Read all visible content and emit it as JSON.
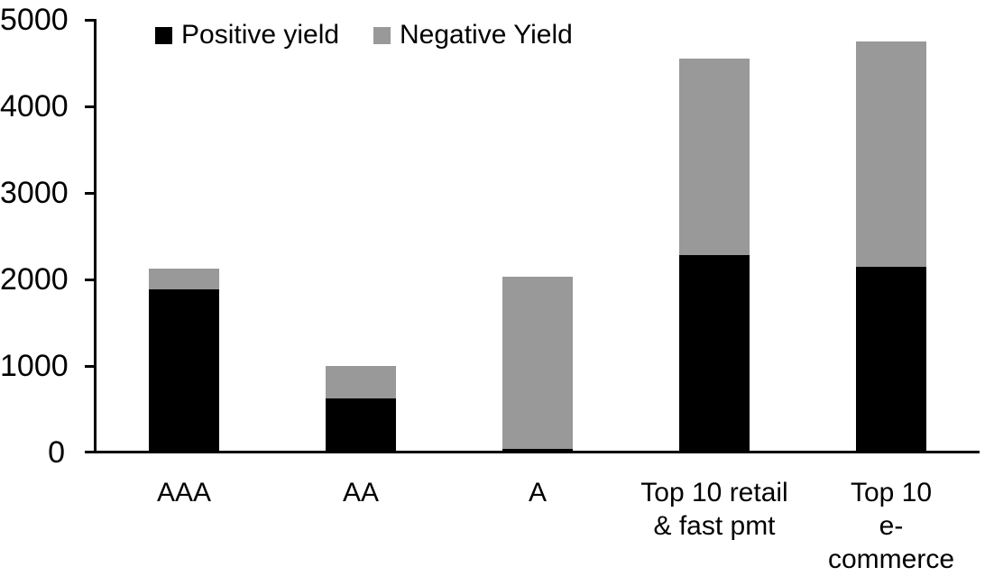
{
  "chart_data": {
    "type": "bar",
    "stacked": true,
    "title": "",
    "xlabel": "",
    "ylabel": "",
    "categories": [
      "AAA",
      "AA",
      "A",
      "Top 10 retail\n& fast pmt",
      "Top 10\ne-commerce"
    ],
    "series": [
      {
        "name": "Positive yield",
        "color": "#000000",
        "values": [
          1890,
          620,
          45,
          2280,
          2150
        ]
      },
      {
        "name": "Negative Yield",
        "color": "#999999",
        "values": [
          240,
          380,
          1990,
          2270,
          2600
        ]
      }
    ],
    "totals": [
      2130,
      1000,
      2035,
      4550,
      4750
    ],
    "ylim": [
      0,
      5000
    ],
    "yticks": [
      0,
      1000,
      2000,
      3000,
      4000,
      5000
    ],
    "grid": false,
    "legend_position": "top-left-inside",
    "axis_color": "#000000",
    "background_color": "#ffffff"
  }
}
